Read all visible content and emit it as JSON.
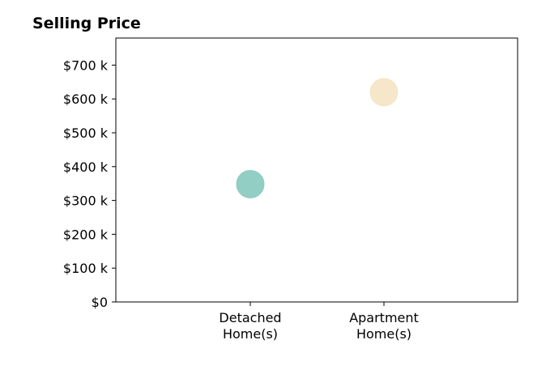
{
  "chart_data": {
    "type": "scatter",
    "title": "Selling Price",
    "xlabel": "",
    "ylabel": "",
    "categories": [
      "Detached\nHome(s)",
      "Apartment\nHome(s)"
    ],
    "ylim": [
      0,
      780000
    ],
    "yticks": [
      0,
      100000,
      200000,
      300000,
      400000,
      500000,
      600000,
      700000
    ],
    "ytick_labels": [
      "$0",
      "$100 k",
      "$200 k",
      "$300 k",
      "$400 k",
      "$500 k",
      "$600 k",
      "$700 k"
    ],
    "grid": false,
    "legend": "none",
    "series": [
      {
        "points": [
          {
            "category": "Detached\nHome(s)",
            "value": 348000,
            "color": "#8ccbc0"
          },
          {
            "category": "Apartment\nHome(s)",
            "value": 620000,
            "color": "#f5e6c8"
          }
        ]
      }
    ]
  }
}
